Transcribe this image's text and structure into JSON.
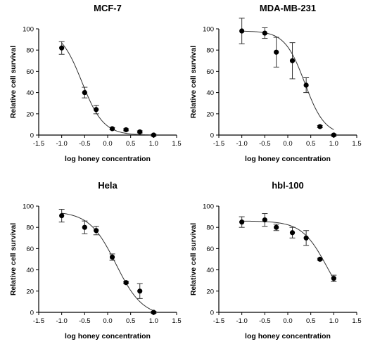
{
  "chart_data": [
    {
      "type": "scatter",
      "title": "MCF-7",
      "xlabel": "log honey concentration",
      "ylabel": "Relative cell survival",
      "xlim": [
        -1.5,
        1.5
      ],
      "ylim": [
        0,
        100
      ],
      "x_ticks": [
        "-1.5",
        "-1.0",
        "-0.5",
        "0.0",
        "0.5",
        "1.0",
        "1.5"
      ],
      "y_ticks": [
        "0",
        "20",
        "40",
        "60",
        "80",
        "100"
      ],
      "points": [
        {
          "x": -1.0,
          "y": 82,
          "err": 6
        },
        {
          "x": -0.5,
          "y": 40,
          "err": 5
        },
        {
          "x": -0.25,
          "y": 24,
          "err": 4
        },
        {
          "x": 0.1,
          "y": 6,
          "err": 1
        },
        {
          "x": 0.4,
          "y": 5,
          "err": 1
        },
        {
          "x": 0.7,
          "y": 3,
          "err": 1
        },
        {
          "x": 1.0,
          "y": 0,
          "err": 1
        }
      ],
      "fit": {
        "top": 100,
        "bottom": 0,
        "logIC50": -0.56,
        "hill": -1.85
      }
    },
    {
      "type": "scatter",
      "title": "MDA-MB-231",
      "xlabel": "log honey concentration",
      "ylabel": "Relative cell survival",
      "xlim": [
        -1.5,
        1.5
      ],
      "ylim": [
        0,
        100
      ],
      "x_ticks": [
        "-1.5",
        "-1.0",
        "-0.5",
        "0.0",
        "0.5",
        "1.0",
        "1.5"
      ],
      "y_ticks": [
        "0",
        "20",
        "40",
        "60",
        "80",
        "100"
      ],
      "points": [
        {
          "x": -1.0,
          "y": 98,
          "err": 12
        },
        {
          "x": -0.5,
          "y": 96,
          "err": 5
        },
        {
          "x": -0.25,
          "y": 78,
          "err": 14
        },
        {
          "x": 0.1,
          "y": 70,
          "err": 17
        },
        {
          "x": 0.4,
          "y": 47,
          "err": 7
        },
        {
          "x": 0.7,
          "y": 8,
          "err": 1
        },
        {
          "x": 1.0,
          "y": 0,
          "err": 1
        }
      ],
      "fit": {
        "top": 98,
        "bottom": 0,
        "logIC50": 0.37,
        "hill": -2.0
      }
    },
    {
      "type": "scatter",
      "title": "Hela",
      "xlabel": "log honey concentration",
      "ylabel": "Relative cell survival",
      "xlim": [
        -1.5,
        1.5
      ],
      "ylim": [
        0,
        100
      ],
      "x_ticks": [
        "-1.5",
        "-1.0",
        "-0.5",
        "0.0",
        "0.5",
        "1.0",
        "1.5"
      ],
      "y_ticks": [
        "0",
        "20",
        "40",
        "60",
        "80",
        "100"
      ],
      "points": [
        {
          "x": -1.0,
          "y": 91,
          "err": 6
        },
        {
          "x": -0.5,
          "y": 80,
          "err": 6
        },
        {
          "x": -0.25,
          "y": 77,
          "err": 4
        },
        {
          "x": 0.1,
          "y": 52,
          "err": 3
        },
        {
          "x": 0.4,
          "y": 28,
          "err": 1
        },
        {
          "x": 0.7,
          "y": 20,
          "err": 7
        },
        {
          "x": 1.0,
          "y": 0,
          "err": 1
        }
      ],
      "fit": {
        "top": 95,
        "bottom": -4,
        "logIC50": 0.18,
        "hill": -1.5
      }
    },
    {
      "type": "scatter",
      "title": "hbl-100",
      "xlabel": "log honey concentration",
      "ylabel": "Relative cell survival",
      "xlim": [
        -1.5,
        1.5
      ],
      "ylim": [
        0,
        100
      ],
      "x_ticks": [
        "-1.5",
        "-1.0",
        "-0.5",
        "0.0",
        "0.5",
        "1.0",
        "1.5"
      ],
      "y_ticks": [
        "0",
        "20",
        "40",
        "60",
        "80",
        "100"
      ],
      "points": [
        {
          "x": -1.0,
          "y": 85,
          "err": 5
        },
        {
          "x": -0.5,
          "y": 87,
          "err": 6
        },
        {
          "x": -0.25,
          "y": 80,
          "err": 3
        },
        {
          "x": 0.1,
          "y": 75,
          "err": 5
        },
        {
          "x": 0.4,
          "y": 70,
          "err": 7
        },
        {
          "x": 0.7,
          "y": 50,
          "err": 1
        },
        {
          "x": 1.0,
          "y": 32,
          "err": 3
        }
      ],
      "fit": {
        "top": 86,
        "bottom": 0,
        "logIC50": 0.85,
        "hill": -1.6
      }
    }
  ]
}
